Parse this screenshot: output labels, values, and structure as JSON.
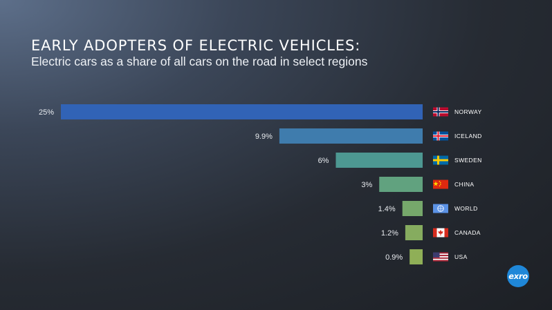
{
  "chart_data": {
    "type": "bar",
    "orientation": "horizontal",
    "title": "EARLY ADOPTERS OF ELECTRIC VEHICLES:",
    "subtitle": "Electric cars as a share of all cars on the road in select regions",
    "categories": [
      "NORWAY",
      "ICELAND",
      "SWEDEN",
      "CHINA",
      "WORLD",
      "CANADA",
      "USA"
    ],
    "values": [
      25,
      9.9,
      6,
      3,
      1.4,
      1.2,
      0.9
    ],
    "value_labels": [
      "25%",
      "9.9%",
      "6%",
      "3%",
      "1.4%",
      "1.2%",
      "0.9%"
    ],
    "colors": [
      "#3163b6",
      "#3f7cad",
      "#4d9892",
      "#61a27f",
      "#76a86b",
      "#86ac5f",
      "#8faf57"
    ],
    "flags": [
      "norway-flag",
      "iceland-flag",
      "sweden-flag",
      "china-flag",
      "un-flag",
      "canada-flag",
      "usa-flag"
    ],
    "xlim": [
      0,
      25
    ],
    "grid": false,
    "legend": "none"
  },
  "logo": {
    "text": "exro"
  }
}
